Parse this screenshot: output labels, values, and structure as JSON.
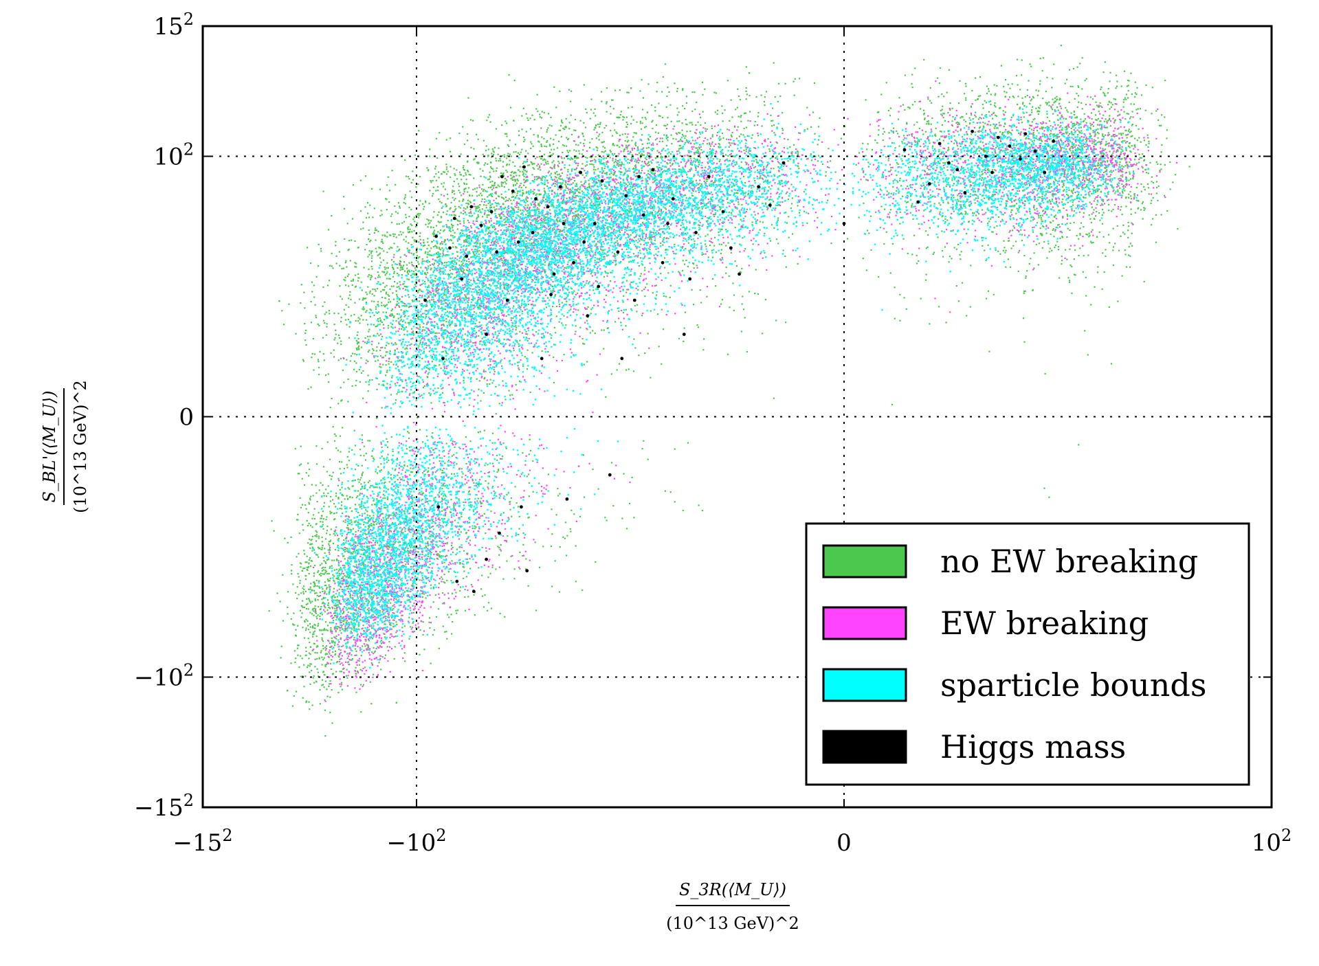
{
  "chart_data": {
    "type": "scatter",
    "title": "",
    "xlabel": {
      "numerator": "S_3R(⟨M_U⟩)",
      "denominator": "(10^13 GeV)^2"
    },
    "ylabel": {
      "numerator": "S_BL'(⟨M_U⟩)",
      "denominator": "(10^13 GeV)^2"
    },
    "x_scale": "symmetric-square",
    "y_scale": "symmetric-square",
    "xlim": [
      -225,
      100
    ],
    "ylim": [
      -225,
      225
    ],
    "grid": true,
    "grid_style": "dotted",
    "x_ticks": [
      {
        "value": -225,
        "base": "−15",
        "exp": "2"
      },
      {
        "value": -100,
        "base": "−10",
        "exp": "2"
      },
      {
        "value": 0,
        "base": "0",
        "exp": ""
      },
      {
        "value": 100,
        "base": "10",
        "exp": "2"
      }
    ],
    "y_ticks": [
      {
        "value": 225,
        "base": "15",
        "exp": "2"
      },
      {
        "value": 100,
        "base": "10",
        "exp": "2"
      },
      {
        "value": 0,
        "base": "0",
        "exp": ""
      },
      {
        "value": -100,
        "base": "−10",
        "exp": "2"
      },
      {
        "value": -225,
        "base": "−15",
        "exp": "2"
      }
    ],
    "legend_position": "bottom-right",
    "series": [
      {
        "name": "no EW breaking",
        "color": "#4cc94c",
        "description": "broad cloud; density core along band",
        "band": {
          "x_range": [
            -160,
            45
          ],
          "center_line": [
            [
              -150,
              -45
            ],
            [
              -100,
              10
            ],
            [
              -50,
              60
            ],
            [
              0,
              95
            ],
            [
              30,
              100
            ]
          ],
          "half_width": 60
        },
        "sample_points": [
          [
            -140,
            -60
          ],
          [
            -120,
            -30
          ],
          [
            -100,
            0
          ],
          [
            -90,
            20
          ],
          [
            -75,
            45
          ],
          [
            -55,
            60
          ],
          [
            -30,
            85
          ],
          [
            -10,
            110
          ],
          [
            0,
            125
          ],
          [
            20,
            115
          ],
          [
            40,
            100
          ],
          [
            -155,
            -80
          ],
          [
            -130,
            -95
          ],
          [
            -95,
            90
          ],
          [
            -60,
            130
          ],
          [
            -25,
            160
          ],
          [
            -5,
            175
          ],
          [
            -110,
            -120
          ],
          [
            -170,
            -110
          ],
          [
            -175,
            20
          ],
          [
            -165,
            -70
          ]
        ]
      },
      {
        "name": "EW breaking",
        "color": "#ff44ff",
        "description": "concentrated near upper-right core",
        "band": {
          "x_range": [
            -140,
            40
          ],
          "center_line": [
            [
              -130,
              -60
            ],
            [
              -80,
              10
            ],
            [
              -40,
              50
            ],
            [
              0,
              90
            ],
            [
              35,
              100
            ]
          ],
          "half_width": 45
        },
        "sample_points": [
          [
            -60,
            20
          ],
          [
            -30,
            60
          ],
          [
            -5,
            105
          ],
          [
            10,
            115
          ],
          [
            25,
            105
          ],
          [
            -120,
            -70
          ],
          [
            -90,
            -20
          ]
        ]
      },
      {
        "name": "sparticle bounds",
        "color": "#00ffff",
        "description": "dense inner region of the band",
        "band": {
          "x_range": [
            -135,
            30
          ],
          "center_line": [
            [
              -125,
              -40
            ],
            [
              -90,
              5
            ],
            [
              -50,
              40
            ],
            [
              -10,
              75
            ],
            [
              20,
              95
            ]
          ],
          "half_width": 40
        },
        "sample_points": [
          [
            -80,
            10
          ],
          [
            -50,
            40
          ],
          [
            -20,
            60
          ],
          [
            0,
            80
          ],
          [
            -100,
            -10
          ]
        ]
      },
      {
        "name": "Higgs mass",
        "color": "#000000",
        "description": "sparse points inside cyan region",
        "points": [
          [
            -96,
            20
          ],
          [
            -90,
            -12
          ],
          [
            -85,
            42
          ],
          [
            -82,
            -40
          ],
          [
            -78,
            38
          ],
          [
            -75,
            -45
          ],
          [
            -72,
            54
          ],
          [
            -70,
            10
          ],
          [
            -68,
            62
          ],
          [
            -65,
            -20
          ],
          [
            -62,
            20
          ],
          [
            -60,
            75
          ],
          [
            -58,
            45
          ],
          [
            -55,
            -35
          ],
          [
            -53,
            50
          ],
          [
            -50,
            5
          ],
          [
            -48,
            65
          ],
          [
            -46,
            30
          ],
          [
            -44,
            78
          ],
          [
            -42,
            -10
          ],
          [
            -40,
            35
          ],
          [
            -38,
            88
          ],
          [
            -36,
            15
          ],
          [
            -34,
            55
          ],
          [
            -32,
            82
          ],
          [
            -30,
            -5
          ],
          [
            -28,
            40
          ],
          [
            -26,
            72
          ],
          [
            -24,
            20
          ],
          [
            -22,
            60
          ],
          [
            -20,
            90
          ],
          [
            -18,
            35
          ],
          [
            -16,
            70
          ],
          [
            -14,
            10
          ],
          [
            -12,
            50
          ],
          [
            -10,
            85
          ],
          [
            -8,
            62
          ],
          [
            -6,
            30
          ],
          [
            -4,
            78
          ],
          [
            -2,
            95
          ],
          [
            0,
            55
          ],
          [
            2,
            105
          ],
          [
            4,
            80
          ],
          [
            5,
            110
          ],
          [
            7,
            90
          ],
          [
            9,
            120
          ],
          [
            11,
            100
          ],
          [
            13,
            115
          ],
          [
            15,
            108
          ],
          [
            17,
            98
          ],
          [
            18,
            118
          ],
          [
            20,
            104
          ],
          [
            22,
            88
          ],
          [
            24,
            112
          ],
          [
            -88,
            5
          ],
          [
            -80,
            28
          ],
          [
            -70,
            -30
          ],
          [
            -57,
            -12
          ],
          [
            -47,
            22
          ],
          [
            -37,
            45
          ],
          [
            -27,
            5
          ],
          [
            -17,
            55
          ],
          [
            -7,
            42
          ],
          [
            3,
            68
          ],
          [
            8,
            74
          ],
          [
            -66,
            40
          ],
          [
            -52,
            70
          ],
          [
            -43,
            55
          ],
          [
            -33,
            25
          ],
          [
            -23,
            85
          ],
          [
            -13,
            28
          ],
          [
            -3,
            66
          ],
          [
            6,
            95
          ],
          [
            12,
            88
          ],
          [
            -91,
            48
          ],
          [
            -83,
            58
          ],
          [
            -76,
            65
          ],
          [
            -64,
            85
          ],
          [
            -56,
            92
          ]
        ]
      }
    ]
  }
}
